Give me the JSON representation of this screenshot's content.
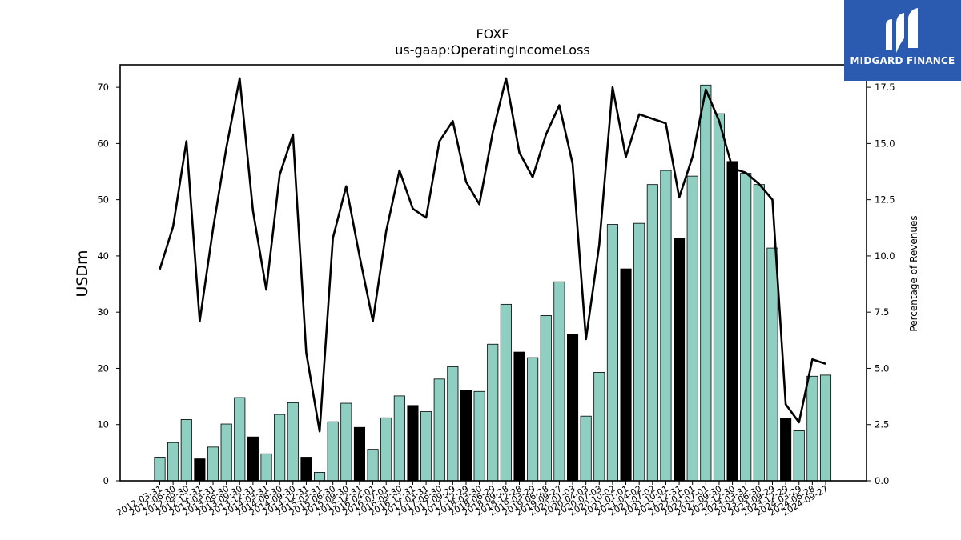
{
  "chart_data": {
    "type": "bar",
    "title": "FOXF",
    "subtitle": "us-gaap:OperatingIncomeLoss",
    "ylabel": "USDm",
    "y2label": "Percentage of Revenues",
    "ylim": [
      0,
      74
    ],
    "y2lim": [
      0,
      18.5
    ],
    "yticks": [
      0,
      10,
      20,
      30,
      40,
      50,
      60,
      70
    ],
    "y2ticks": [
      "0.0",
      "2.5",
      "5.0",
      "7.5",
      "10.0",
      "12.5",
      "15.0",
      "17.5"
    ],
    "categories": [
      "2012-03-31",
      "2012-06-30",
      "2012-09-30",
      "2012-12-31",
      "2013-03-31",
      "2013-06-30",
      "2013-09-30",
      "2013-12-31",
      "2014-03-31",
      "2014-06-30",
      "2014-09-30",
      "2014-12-31",
      "2015-03-31",
      "2015-06-30",
      "2015-09-30",
      "2015-12-31",
      "2016-04-01",
      "2016-07-01",
      "2016-09-30",
      "2016-12-31",
      "2017-03-31",
      "2017-06-30",
      "2017-09-29",
      "2017-12-29",
      "2018-03-30",
      "2018-06-29",
      "2018-09-28",
      "2018-12-28",
      "2019-03-29",
      "2019-06-28",
      "2019-09-27",
      "2020-01-03",
      "2020-04-03",
      "2020-07-03",
      "2020-10-02",
      "2021-01-01",
      "2021-04-02",
      "2021-07-02",
      "2021-10-01",
      "2021-12-31",
      "2022-04-01",
      "2022-07-01",
      "2022-09-30",
      "2022-12-30",
      "2023-03-31",
      "2023-06-30",
      "2023-09-29",
      "2023-12-29",
      "2024-03-29",
      "2024-06-28",
      "2024-09-27"
    ],
    "xtick_labels": [
      "2012-03-31",
      "2012-06-30",
      "2012-09-30",
      "2012-12-31",
      "2013-03-31",
      "2013-06-30",
      "2013-09-30",
      "2013-12-31",
      "2014-03-31",
      "2014-06-30",
      "2014-09-30",
      "2014-12-31",
      "2015-03-31",
      "2015-06-30",
      "2015-09-30",
      "2015-12-31",
      "2016-04-01",
      "2016-07-01",
      "2016-09-30",
      "2016-12-31",
      "2017-03-31",
      "2017-06-30",
      "2017-09-29",
      "2017-12-29",
      "2018-03-30",
      "2018-06-29",
      "2018-09-28",
      "2018-12-28",
      "2019-03-29",
      "2019-06-28",
      "2019-09-27",
      "2020-01-03",
      "2020-04-03",
      "2020-07-03",
      "2020-10-02",
      "2021-01-01",
      "2021-04-02",
      "2021-07-02",
      "2021-10-01",
      "2021-12-31",
      "2022-04-01",
      "2022-07-01",
      "2022-09-30",
      "2022-12-30",
      "2023-03-31",
      "2023-06-30",
      "2023-09-29",
      "2023-12-29",
      "2024-03-29",
      "2024-06-28",
      "2024-09-27"
    ],
    "series": [
      {
        "type": "bar",
        "values": [
          4.2,
          6.8,
          10.9,
          3.9,
          6.0,
          10.1,
          14.8,
          7.8,
          4.8,
          11.8,
          13.9,
          4.2,
          1.5,
          10.5,
          13.8,
          9.5,
          5.6,
          11.2,
          15.1,
          13.4,
          12.3,
          18.1,
          20.3,
          16.1,
          15.9,
          24.3,
          31.4,
          22.9,
          21.9,
          29.4,
          35.4,
          26.1,
          11.5,
          19.3,
          45.6,
          37.7,
          45.8,
          52.7,
          55.2,
          43.1,
          54.2,
          70.4,
          65.3,
          56.8,
          54.7,
          52.7,
          41.4,
          11.1,
          8.9,
          18.6,
          18.8
        ],
        "highlight": [
          false,
          false,
          false,
          true,
          false,
          false,
          false,
          true,
          false,
          false,
          false,
          true,
          false,
          false,
          false,
          true,
          false,
          false,
          false,
          true,
          false,
          false,
          false,
          true,
          false,
          false,
          false,
          true,
          false,
          false,
          false,
          true,
          false,
          false,
          false,
          true,
          false,
          false,
          false,
          true,
          false,
          false,
          false,
          true,
          false,
          false,
          false,
          true,
          false,
          false,
          false
        ]
      },
      {
        "type": "line",
        "axis": "right",
        "values": [
          9.4,
          11.3,
          15.1,
          7.1,
          11.2,
          14.8,
          17.9,
          12.0,
          8.5,
          13.6,
          15.4,
          5.7,
          2.2,
          10.8,
          13.1,
          10.0,
          7.1,
          11.1,
          13.8,
          12.1,
          11.7,
          15.1,
          16.0,
          13.3,
          12.3,
          15.5,
          17.9,
          14.6,
          13.5,
          15.4,
          16.7,
          14.1,
          6.3,
          10.5,
          17.5,
          14.4,
          16.3,
          16.1,
          15.9,
          12.6,
          14.4,
          17.4,
          16.0,
          13.9,
          13.7,
          13.2,
          12.5,
          3.4,
          2.6,
          5.4,
          5.2
        ]
      }
    ],
    "colors": {
      "bar": "#8ecfc2",
      "bar_highlight": "#000000",
      "line": "#000000",
      "axis": "#000000"
    },
    "grid": false,
    "legend": "none"
  },
  "logo": {
    "text": "MIDGARD FINANCE",
    "icon": "midgard-m-mark-icon",
    "background": "#2b5bb0"
  }
}
